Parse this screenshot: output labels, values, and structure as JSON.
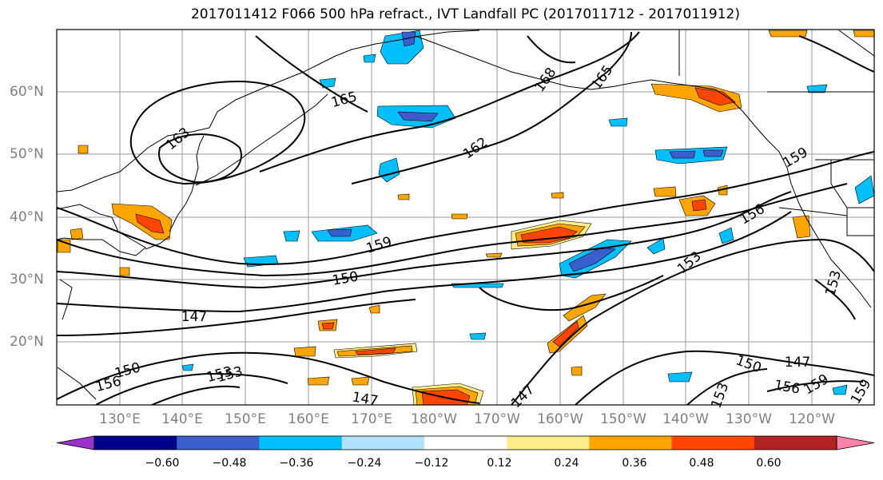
{
  "title": "2017011412 F066 500 hPa refract., IVT Landfall PC (2017011712 - 2017011912)",
  "lat_ticks": [
    "20°N",
    "30°N",
    "40°N",
    "50°N",
    "60°N"
  ],
  "lon_ticks": [
    "130°E",
    "140°E",
    "150°E",
    "160°E",
    "170°E",
    "180°W",
    "170°W",
    "160°W",
    "150°W",
    "140°W",
    "130°W",
    "120°W"
  ],
  "map_extent": {
    "lon_min": 120,
    "lon_max": 250,
    "lat_min": 10,
    "lat_max": 70
  },
  "contour_labels": [
    "165",
    "168",
    "165",
    "163",
    "162",
    "159",
    "156",
    "159",
    "150",
    "153",
    "147",
    "153",
    "150",
    "147",
    "150",
    "156",
    "153",
    "147",
    "147",
    "153",
    "156",
    "159",
    "159",
    "153"
  ],
  "colorbar": {
    "ticks": [
      "−0.60",
      "−0.48",
      "−0.36",
      "−0.24",
      "−0.12",
      "0.12",
      "0.24",
      "0.36",
      "0.48",
      "0.60"
    ],
    "colors": [
      "#9932cc",
      "#00008b",
      "#3a5fcd",
      "#00bfff",
      "#b0e2ff",
      "#ffffff",
      "#ffec8b",
      "#ffa500",
      "#ff4500",
      "#b22222",
      "#ff82ab"
    ]
  },
  "colors": {
    "contour": "#000000",
    "grid": "#999999",
    "coast": "#000000",
    "tick_label": "#808080"
  }
}
